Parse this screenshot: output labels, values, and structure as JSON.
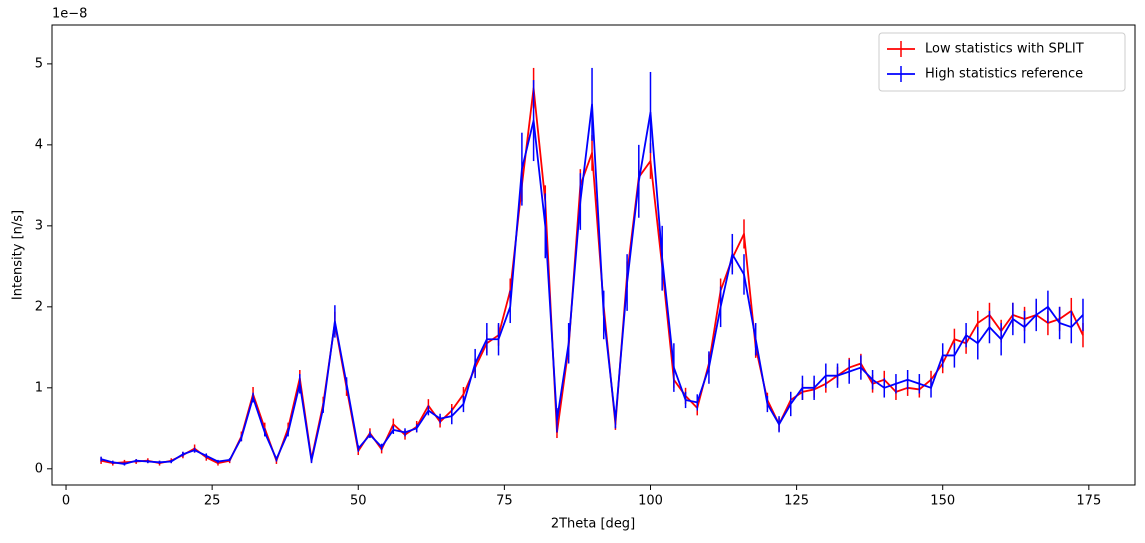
{
  "chart_data": {
    "type": "line",
    "x_label": "2Theta [deg]",
    "y_label": "Intensity [n/s]",
    "y_offset_text": "1e−8",
    "x": [
      6,
      8,
      10,
      12,
      14,
      16,
      18,
      20,
      22,
      24,
      26,
      28,
      30,
      32,
      34,
      36,
      38,
      40,
      42,
      44,
      46,
      48,
      50,
      52,
      54,
      56,
      58,
      60,
      62,
      64,
      66,
      68,
      70,
      72,
      74,
      76,
      78,
      80,
      82,
      84,
      86,
      88,
      90,
      92,
      94,
      96,
      98,
      100,
      102,
      104,
      106,
      108,
      110,
      112,
      114,
      116,
      118,
      120,
      122,
      124,
      126,
      128,
      130,
      132,
      134,
      136,
      138,
      140,
      142,
      144,
      146,
      148,
      150,
      152,
      154,
      156,
      158,
      160,
      162,
      164,
      166,
      168,
      170,
      172,
      174
    ],
    "series": [
      {
        "name": "Low statistics with SPLIT",
        "color": "#ff0000",
        "values": [
          0.1,
          0.07,
          0.08,
          0.09,
          0.1,
          0.07,
          0.1,
          0.17,
          0.25,
          0.14,
          0.07,
          0.1,
          0.4,
          0.92,
          0.5,
          0.1,
          0.5,
          1.12,
          0.12,
          0.8,
          1.8,
          1.0,
          0.22,
          0.44,
          0.24,
          0.55,
          0.42,
          0.52,
          0.78,
          0.58,
          0.72,
          0.92,
          1.25,
          1.55,
          1.65,
          2.2,
          3.5,
          4.7,
          3.3,
          0.45,
          1.5,
          3.5,
          3.9,
          2.0,
          0.55,
          2.4,
          3.6,
          3.8,
          2.5,
          1.1,
          0.9,
          0.75,
          1.3,
          2.2,
          2.6,
          2.9,
          1.5,
          0.85,
          0.55,
          0.85,
          0.95,
          0.98,
          1.05,
          1.15,
          1.25,
          1.3,
          1.05,
          1.1,
          0.95,
          1.0,
          0.98,
          1.1,
          1.3,
          1.6,
          1.55,
          1.8,
          1.9,
          1.7,
          1.9,
          1.85,
          1.9,
          1.8,
          1.85,
          1.95,
          1.65
        ],
        "errors": [
          0.04,
          0.03,
          0.03,
          0.03,
          0.03,
          0.03,
          0.03,
          0.04,
          0.05,
          0.04,
          0.03,
          0.03,
          0.06,
          0.09,
          0.07,
          0.04,
          0.07,
          0.1,
          0.04,
          0.09,
          0.14,
          0.1,
          0.05,
          0.06,
          0.05,
          0.07,
          0.06,
          0.07,
          0.08,
          0.07,
          0.08,
          0.09,
          0.11,
          0.12,
          0.13,
          0.15,
          0.2,
          0.25,
          0.2,
          0.07,
          0.12,
          0.2,
          0.22,
          0.14,
          0.07,
          0.16,
          0.21,
          0.22,
          0.17,
          0.1,
          0.1,
          0.09,
          0.11,
          0.15,
          0.17,
          0.18,
          0.13,
          0.09,
          0.08,
          0.1,
          0.1,
          0.1,
          0.11,
          0.11,
          0.12,
          0.12,
          0.11,
          0.11,
          0.1,
          0.1,
          0.1,
          0.11,
          0.12,
          0.13,
          0.13,
          0.15,
          0.15,
          0.14,
          0.15,
          0.15,
          0.15,
          0.15,
          0.15,
          0.16,
          0.15
        ]
      },
      {
        "name": "High statistics reference",
        "color": "#0000ff",
        "values": [
          0.12,
          0.08,
          0.06,
          0.1,
          0.09,
          0.08,
          0.09,
          0.18,
          0.23,
          0.16,
          0.09,
          0.11,
          0.38,
          0.88,
          0.45,
          0.12,
          0.45,
          1.05,
          0.1,
          0.75,
          1.82,
          1.05,
          0.25,
          0.42,
          0.27,
          0.48,
          0.45,
          0.5,
          0.72,
          0.62,
          0.65,
          0.8,
          1.3,
          1.6,
          1.6,
          2.0,
          3.7,
          4.3,
          3.0,
          0.6,
          1.55,
          3.3,
          4.5,
          1.9,
          0.6,
          2.3,
          3.55,
          4.4,
          2.6,
          1.25,
          0.85,
          0.82,
          1.25,
          2.0,
          2.65,
          2.4,
          1.6,
          0.8,
          0.55,
          0.8,
          1.0,
          1.0,
          1.15,
          1.15,
          1.2,
          1.25,
          1.1,
          1.0,
          1.05,
          1.1,
          1.05,
          1.0,
          1.4,
          1.4,
          1.65,
          1.55,
          1.75,
          1.6,
          1.85,
          1.75,
          1.9,
          2.0,
          1.8,
          1.75,
          1.9
        ],
        "errors": [
          0.03,
          0.02,
          0.02,
          0.02,
          0.02,
          0.02,
          0.02,
          0.03,
          0.03,
          0.03,
          0.02,
          0.02,
          0.04,
          0.06,
          0.05,
          0.03,
          0.05,
          0.12,
          0.03,
          0.06,
          0.2,
          0.08,
          0.04,
          0.04,
          0.04,
          0.05,
          0.05,
          0.05,
          0.06,
          0.06,
          0.1,
          0.1,
          0.18,
          0.2,
          0.2,
          0.2,
          0.45,
          0.5,
          0.4,
          0.15,
          0.25,
          0.35,
          0.45,
          0.3,
          0.1,
          0.35,
          0.45,
          0.5,
          0.4,
          0.3,
          0.1,
          0.1,
          0.2,
          0.25,
          0.25,
          0.25,
          0.2,
          0.1,
          0.1,
          0.15,
          0.15,
          0.15,
          0.15,
          0.15,
          0.15,
          0.15,
          0.12,
          0.12,
          0.12,
          0.12,
          0.12,
          0.12,
          0.15,
          0.15,
          0.15,
          0.2,
          0.2,
          0.2,
          0.2,
          0.2,
          0.2,
          0.2,
          0.2,
          0.2,
          0.2
        ]
      }
    ],
    "xlim": [
      -2.4,
      182.9
    ],
    "xticks": [
      0,
      25,
      50,
      75,
      100,
      125,
      150,
      175
    ],
    "ylim": [
      -0.2,
      5.48
    ],
    "yticks": [
      0,
      1,
      2,
      3,
      4,
      5
    ],
    "grid": false,
    "legend": "upper right"
  }
}
